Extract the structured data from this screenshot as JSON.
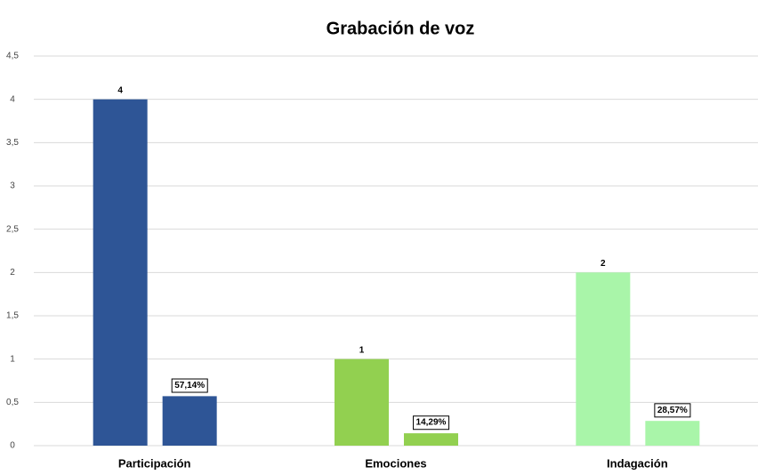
{
  "chart_data": {
    "type": "bar",
    "title": "Grabación de voz",
    "categories": [
      "Participación",
      "Emociones",
      "Indagación"
    ],
    "colors": [
      "#2e5596",
      "#92d050",
      "#a9f5a9"
    ],
    "series": [
      {
        "values": [
          4,
          1,
          2
        ]
      },
      {
        "values": [
          0.5714,
          0.1429,
          0.2857
        ],
        "value_labels": [
          "57,14%",
          "14,29%",
          "28,57%"
        ]
      }
    ],
    "ylim": [
      0,
      4.5
    ],
    "yticks": [
      0,
      {
        "value": 0.5,
        "label": "0,5"
      },
      1,
      {
        "value": 1.5,
        "label": "1,5"
      },
      2,
      {
        "value": 2.5,
        "label": "2,5"
      },
      3,
      {
        "value": 3.5,
        "label": "3,5"
      },
      4,
      {
        "value": 4.5,
        "label": "4,5"
      }
    ],
    "grid": true
  }
}
